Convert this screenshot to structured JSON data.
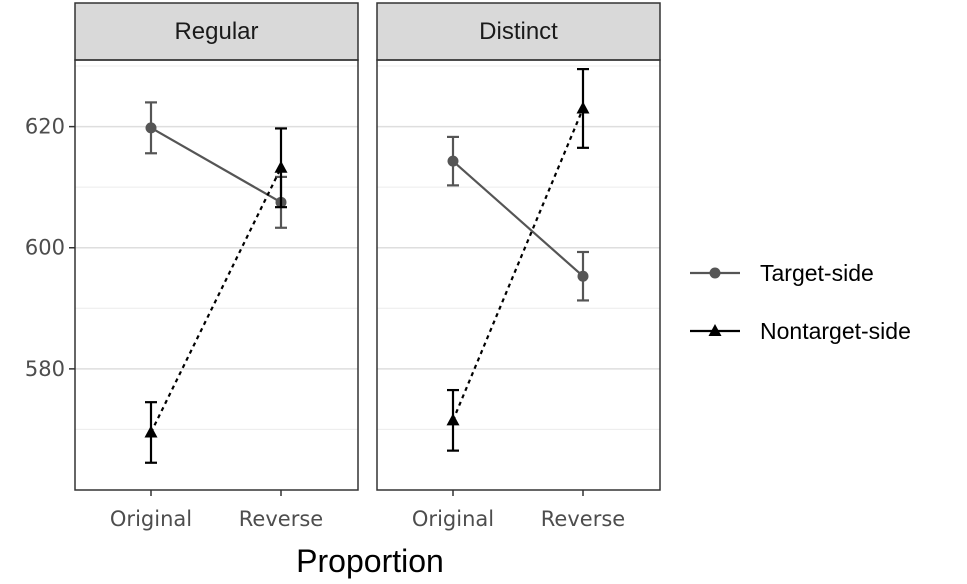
{
  "chart_data": {
    "type": "line",
    "xlabel": "Proportion",
    "ylabel": "",
    "ylim": [
      560,
      631
    ],
    "yticks": [
      580,
      600,
      620
    ],
    "grid": true,
    "legend_position": "right",
    "categories": [
      "Original",
      "Reverse"
    ],
    "panels": [
      {
        "title": "Regular",
        "series": [
          {
            "name": "Target-side",
            "values": [
              619.8,
              607.5
            ],
            "error": [
              4.2,
              4.2
            ]
          },
          {
            "name": "Nontarget-side",
            "values": [
              569.5,
              613.2
            ],
            "error": [
              5.0,
              6.5
            ]
          }
        ]
      },
      {
        "title": "Distinct",
        "series": [
          {
            "name": "Target-side",
            "values": [
              614.3,
              595.3
            ],
            "error": [
              4.0,
              4.0
            ]
          },
          {
            "name": "Nontarget-side",
            "values": [
              571.5,
              623.0
            ],
            "error": [
              5.0,
              6.5
            ]
          }
        ]
      }
    ],
    "series_styles": [
      {
        "name": "Target-side",
        "color": "#555555",
        "marker": "circle",
        "line": "solid"
      },
      {
        "name": "Nontarget-side",
        "color": "#000000",
        "marker": "triangle",
        "line": "dotted"
      }
    ]
  }
}
